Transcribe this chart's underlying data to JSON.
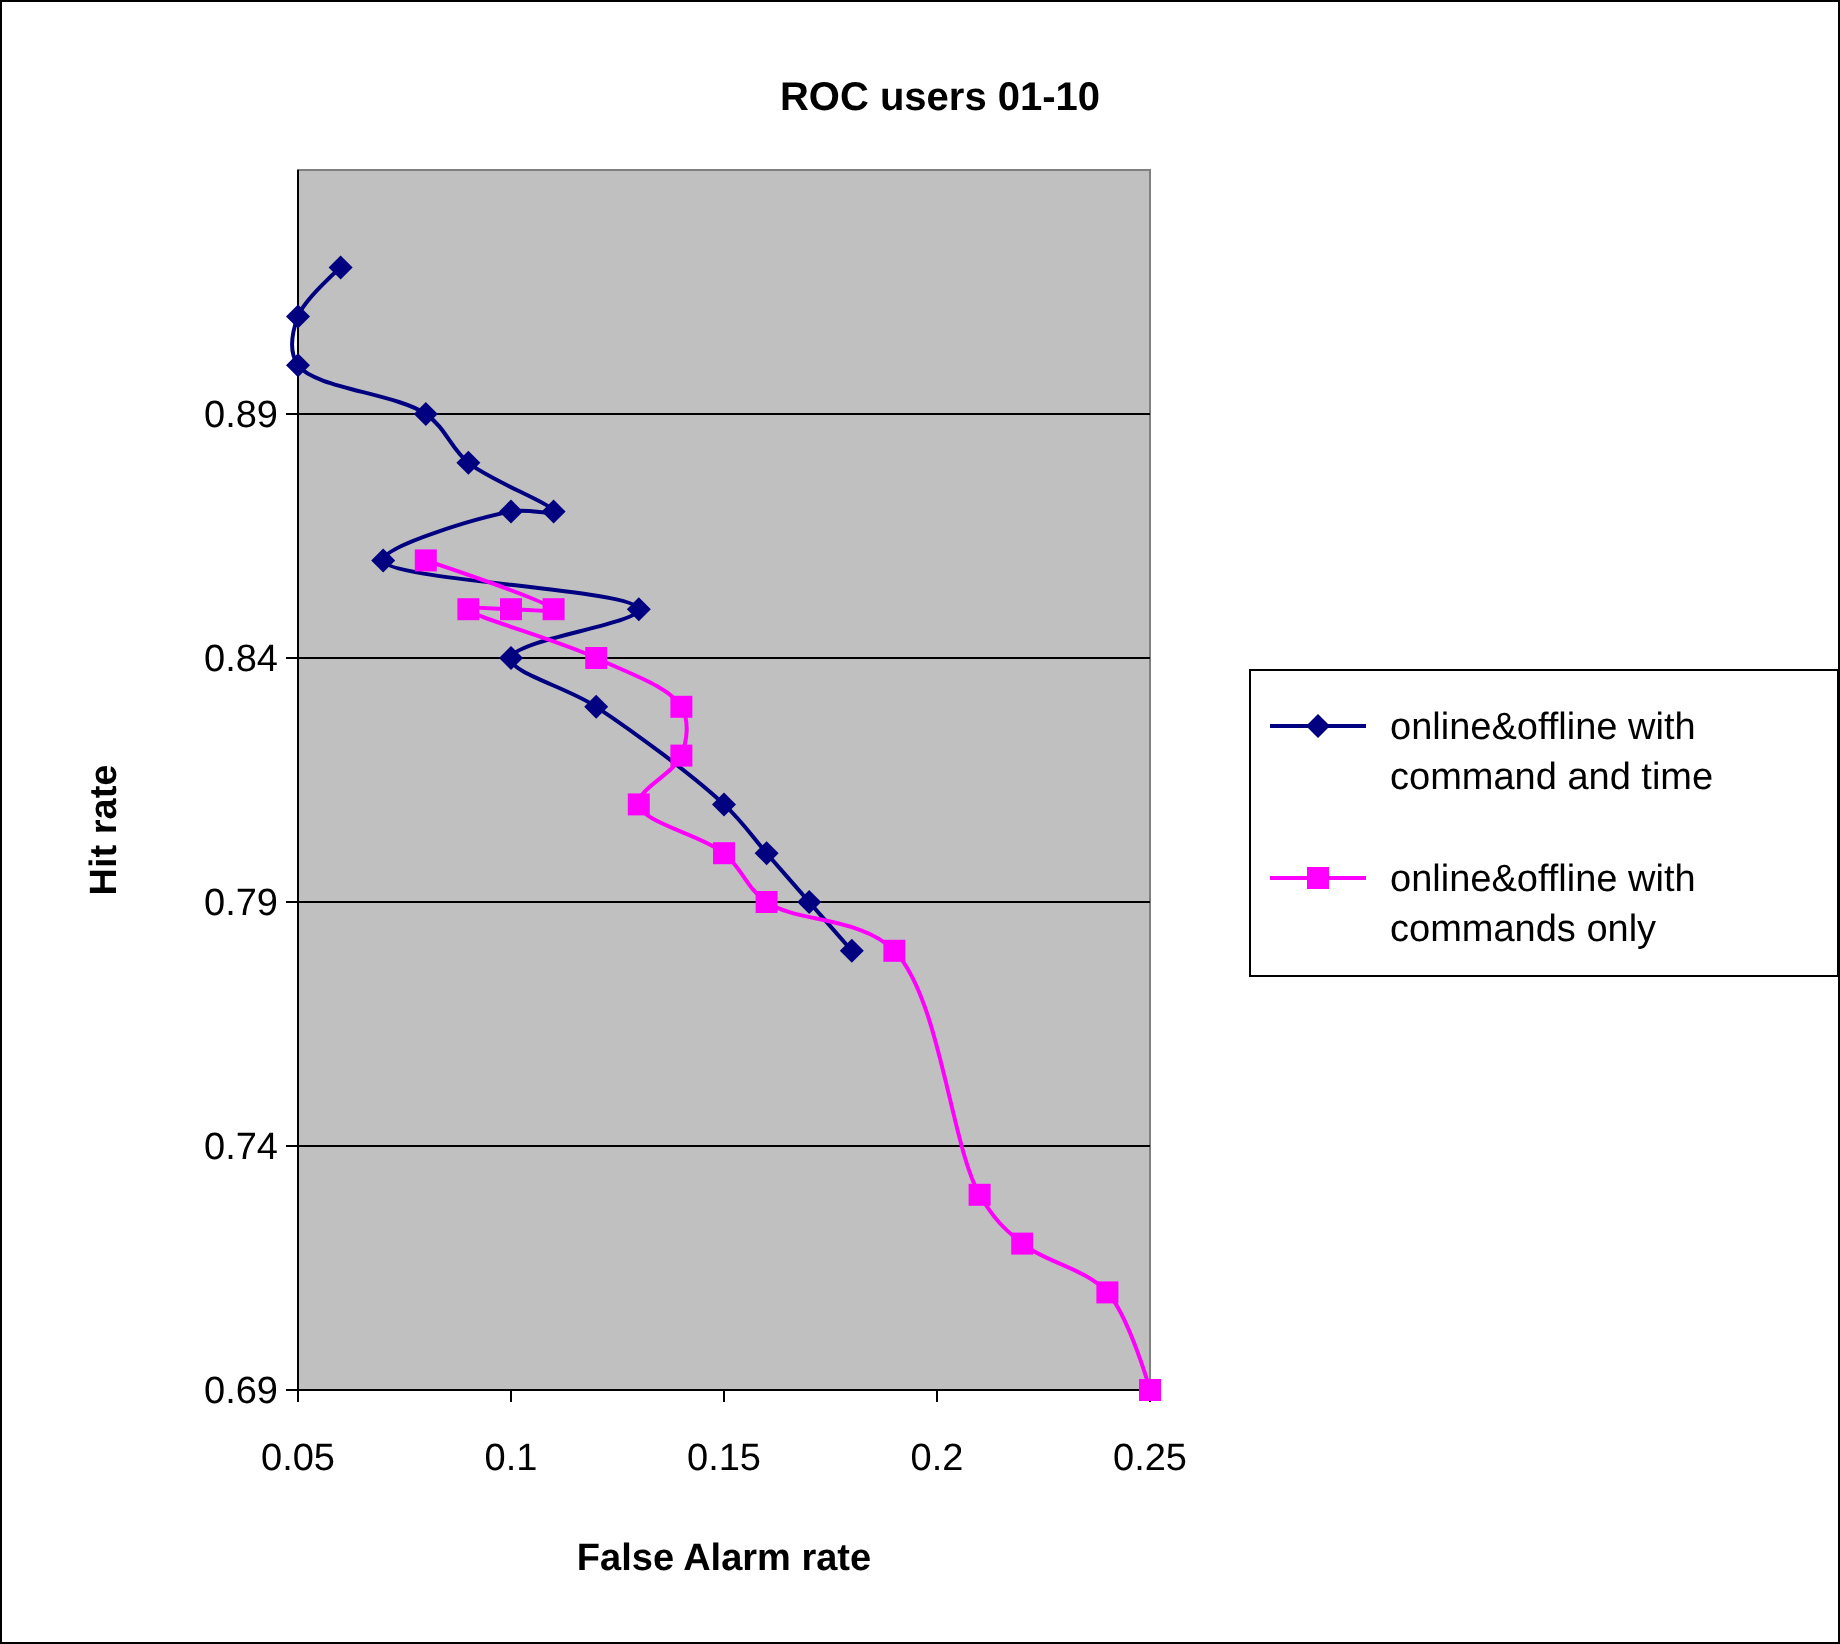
{
  "chart_data": {
    "type": "line",
    "title": "ROC users 01-10",
    "xlabel": "False Alarm rate",
    "ylabel": "Hit rate",
    "xlim": [
      0.05,
      0.25
    ],
    "xticks": [
      0.05,
      0.1,
      0.15,
      0.2,
      0.25
    ],
    "ylim": [
      0.69,
      0.94
    ],
    "yticks": [
      0.69,
      0.74,
      0.79,
      0.84,
      0.89
    ],
    "grid": "y",
    "legend": "right",
    "series": [
      {
        "name": "online&offline with command and time",
        "color": "#000080",
        "marker": "diamond",
        "x": [
          0.06,
          0.05,
          0.05,
          0.08,
          0.09,
          0.11,
          0.1,
          0.07,
          0.13,
          0.1,
          0.12,
          0.15,
          0.16,
          0.17,
          0.18
        ],
        "values": [
          0.92,
          0.91,
          0.9,
          0.89,
          0.88,
          0.87,
          0.87,
          0.86,
          0.85,
          0.84,
          0.83,
          0.81,
          0.8,
          0.79,
          0.78
        ]
      },
      {
        "name": "online&offline with commands only",
        "color": "#ff00ff",
        "marker": "square",
        "x": [
          0.08,
          0.11,
          0.1,
          0.09,
          0.12,
          0.14,
          0.14,
          0.13,
          0.15,
          0.16,
          0.19,
          0.21,
          0.22,
          0.24,
          0.25
        ],
        "values": [
          0.86,
          0.85,
          0.85,
          0.85,
          0.84,
          0.83,
          0.82,
          0.81,
          0.8,
          0.79,
          0.78,
          0.73,
          0.72,
          0.71,
          0.69
        ]
      }
    ]
  }
}
